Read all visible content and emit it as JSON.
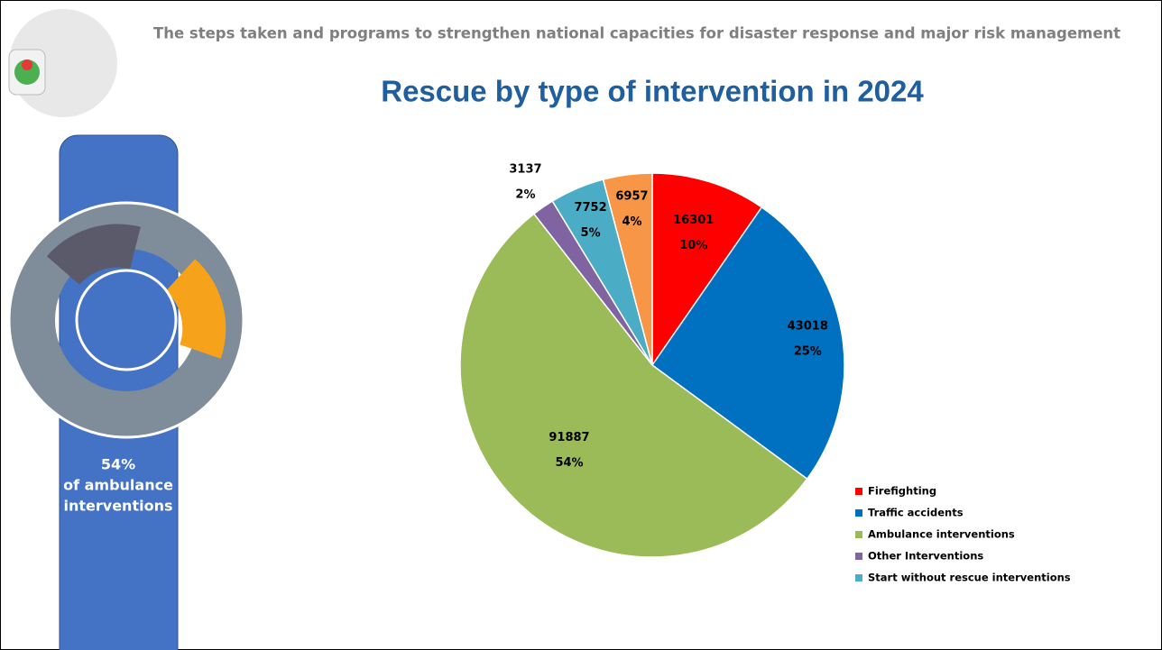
{
  "header": "The steps taken and programs to strengthen national capacities for disaster response and major risk management",
  "side_panel": {
    "lines": [
      "54%",
      "of ambulance",
      "interventions"
    ]
  },
  "chart_data": {
    "type": "pie",
    "title": "Rescue by type of intervention in 2024",
    "categories": [
      "Firefighting",
      "Traffic accidents",
      "Ambulance interventions",
      "Other Interventions",
      "Start without rescue interventions",
      null
    ],
    "values": [
      16301,
      43018,
      91887,
      3137,
      7752,
      6957
    ],
    "percents": [
      10,
      25,
      54,
      2,
      5,
      4
    ],
    "colors": [
      "#ff0000",
      "#0070c0",
      "#9bbb59",
      "#8064a2",
      "#4bacc6",
      "#f79646"
    ],
    "legend": "right-bottom"
  }
}
